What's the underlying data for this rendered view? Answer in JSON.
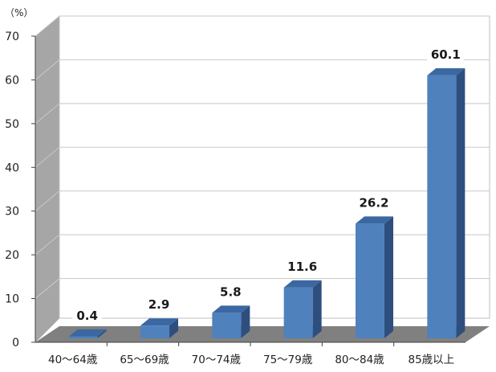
{
  "chart_data": {
    "type": "bar",
    "unit_label": "（%）",
    "categories": [
      "40～64歳",
      "65～69歳",
      "70～74歳",
      "75～79歳",
      "80～84歳",
      "85歳以上"
    ],
    "values": [
      0.4,
      2.9,
      5.8,
      11.6,
      26.2,
      60.1
    ],
    "value_labels": [
      "0.4",
      "2.9",
      "5.8",
      "11.6",
      "26.2",
      "60.1"
    ],
    "yticks": [
      "0",
      "10",
      "20",
      "30",
      "40",
      "50",
      "60",
      "70"
    ],
    "ylim": [
      0,
      70
    ],
    "grid": true,
    "bar_color": "#4F81BD",
    "bar_side_color": "#2E4F7E",
    "bar_top_color": "#3B68A2",
    "wall_color": "#A6A6A6",
    "floor_color": "#808080"
  }
}
